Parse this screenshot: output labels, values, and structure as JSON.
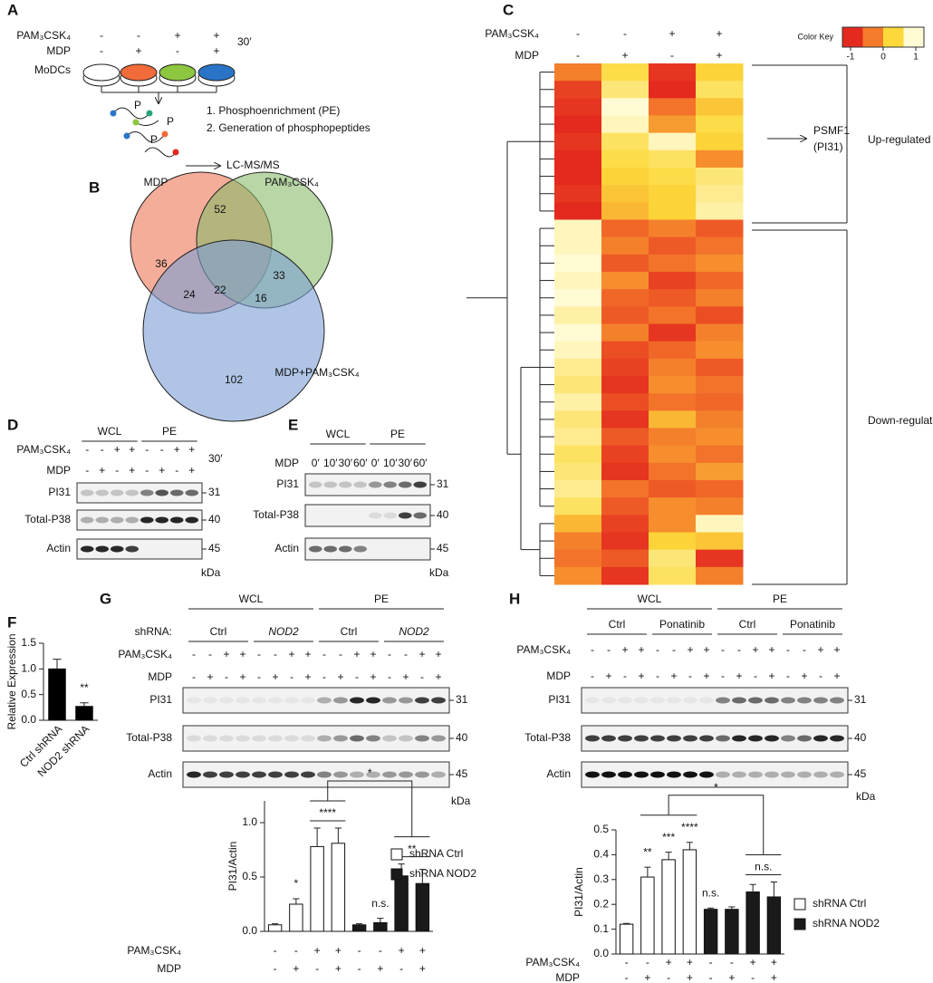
{
  "panel_labels": [
    "A",
    "B",
    "C",
    "D",
    "E",
    "F",
    "G",
    "H"
  ],
  "panel_a": {
    "rows": [
      "PAM₃CSK₄",
      "MDP",
      "MoDCs"
    ],
    "pam_signs": [
      "-",
      "-",
      "+",
      "+"
    ],
    "mdp_signs": [
      "-",
      "+",
      "-",
      "+"
    ],
    "time": "30′",
    "phospho": "P",
    "steps": [
      "1. Phosphoenrichment (PE)",
      "2. Generation of phosphopeptides"
    ],
    "readout": "LC-MS/MS"
  },
  "venn": {
    "sets": [
      "MDP",
      "PAM₃CSK₄",
      "MDP+PAM₃CSK₄"
    ],
    "counts": [
      36,
      52,
      33,
      24,
      22,
      16,
      102
    ]
  },
  "blot_d": {
    "groups": [
      "WCL",
      "PE"
    ],
    "treatments": [
      {
        "label": "PAM₃CSK₄",
        "signs": [
          "-",
          "-",
          "+",
          "+",
          "-",
          "-",
          "+",
          "+"
        ]
      },
      {
        "label": "MDP",
        "signs": [
          "-",
          "+",
          "-",
          "+",
          "-",
          "+",
          "-",
          "+"
        ]
      }
    ],
    "time": "30′",
    "bands": [
      "PI31",
      "Total-P38",
      "Actin"
    ],
    "kda": [
      31,
      40,
      45
    ],
    "kda_unit": "kDa",
    "intensity": [
      [
        0.2,
        0.2,
        0.2,
        0.2,
        0.5,
        0.7,
        0.6,
        0.6
      ],
      [
        0.3,
        0.3,
        0.3,
        0.3,
        0.9,
        0.9,
        0.9,
        0.9
      ],
      [
        0.9,
        0.9,
        0.9,
        0.8,
        0,
        0,
        0,
        0
      ]
    ]
  },
  "blot_e": {
    "groups": [
      "WCL",
      "PE"
    ],
    "treatments": [
      {
        "label": "MDP",
        "signs": [
          "0′",
          "10′",
          "30′",
          "60′",
          "0′",
          "10′",
          "30′",
          "60′"
        ]
      }
    ],
    "bands": [
      "PI31",
      "Total-P38",
      "Actin"
    ],
    "kda": [
      31,
      40,
      45
    ],
    "kda_unit": "kDa",
    "intensity": [
      [
        0.2,
        0.2,
        0.2,
        0.2,
        0.4,
        0.5,
        0.6,
        0.8
      ],
      [
        0,
        0,
        0,
        0,
        0.1,
        0.1,
        0.8,
        0.6
      ],
      [
        0.6,
        0.6,
        0.6,
        0.5,
        0,
        0,
        0,
        0
      ]
    ]
  },
  "blot_g": {
    "groups": [
      "WCL",
      "PE"
    ],
    "subgroup_label": "shRNA:",
    "subgroups": [
      "Ctrl",
      "NOD2",
      "Ctrl",
      "NOD2"
    ],
    "treatments": [
      {
        "label": "PAM₃CSK₄",
        "signs": [
          "-",
          "-",
          "+",
          "+",
          "-",
          "-",
          "+",
          "+",
          "-",
          "-",
          "+",
          "+",
          "-",
          "-",
          "+",
          "+"
        ]
      },
      {
        "label": "MDP",
        "signs": [
          "-",
          "+",
          "-",
          "+",
          "-",
          "+",
          "-",
          "+",
          "-",
          "+",
          "-",
          "+",
          "-",
          "+",
          "-",
          "+"
        ]
      }
    ],
    "bands": [
      "PI31",
      "Total-P38",
      "Actin"
    ],
    "kda": [
      31,
      40,
      45
    ],
    "kda_unit": "kDa",
    "intensity": [
      [
        0.05,
        0.05,
        0.05,
        0.05,
        0.05,
        0.05,
        0.05,
        0.05,
        0.3,
        0.4,
        0.9,
        0.9,
        0.4,
        0.4,
        0.8,
        0.8
      ],
      [
        0.1,
        0.1,
        0.1,
        0.1,
        0.1,
        0.1,
        0.1,
        0.1,
        0.3,
        0.4,
        0.6,
        0.5,
        0.2,
        0.2,
        0.5,
        0.4
      ],
      [
        0.9,
        0.8,
        0.8,
        0.8,
        0.8,
        0.8,
        0.8,
        0.8,
        0.5,
        0.4,
        0.3,
        0.3,
        0.4,
        0.4,
        0.4,
        0.3
      ]
    ]
  },
  "blot_h": {
    "groups": [
      "WCL",
      "PE"
    ],
    "subgroups": [
      "Ctrl",
      "Ponatinib",
      "Ctrl",
      "Ponatinib"
    ],
    "treatments": [
      {
        "label": "PAM₃CSK₄",
        "signs": [
          "-",
          "-",
          "+",
          "+",
          "-",
          "-",
          "+",
          "+",
          "-",
          "-",
          "+",
          "+",
          "-",
          "-",
          "+",
          "+"
        ]
      },
      {
        "label": "MDP",
        "signs": [
          "-",
          "+",
          "-",
          "+",
          "-",
          "+",
          "-",
          "+",
          "-",
          "+",
          "-",
          "+",
          "-",
          "+",
          "-",
          "+"
        ]
      }
    ],
    "bands": [
      "PI31",
      "Total-P38",
      "Actin"
    ],
    "kda": [
      31,
      40,
      45
    ],
    "kda_unit": "kDa",
    "intensity": [
      [
        0.05,
        0.05,
        0.05,
        0.05,
        0.05,
        0.05,
        0.05,
        0.05,
        0.5,
        0.6,
        0.6,
        0.6,
        0.5,
        0.5,
        0.5,
        0.5
      ],
      [
        0.8,
        0.8,
        0.8,
        0.8,
        0.8,
        0.8,
        0.8,
        0.8,
        0.6,
        0.9,
        0.9,
        0.9,
        0.5,
        0.6,
        0.9,
        0.9
      ],
      [
        1,
        1,
        1,
        1,
        1,
        1,
        1,
        1,
        0.3,
        0.3,
        0.3,
        0.3,
        0.3,
        0.3,
        0.3,
        0.3
      ]
    ]
  },
  "chart_data": [
    {
      "type": "heatmap",
      "treatments": [
        {
          "label": "PAM₃CSK₄",
          "signs": [
            "-",
            "-",
            "+",
            "+"
          ]
        },
        {
          "label": "MDP",
          "signs": [
            "-",
            "+",
            "-",
            "+"
          ]
        }
      ],
      "color_key": {
        "title": "Color Key",
        "lim": [
          -1,
          1
        ],
        "ticks": [
          -1,
          0,
          1
        ],
        "colors": [
          "#e4291e",
          "#f47b2a",
          "#fcd83a",
          "#fffbd4"
        ]
      },
      "highlight": [
        "PSMF1",
        "(PI31)"
      ],
      "groups": [
        "Up-regulated",
        "Down-regulated"
      ],
      "values": [
        [
          -0.3,
          0.4,
          -0.9,
          0.3
        ],
        [
          -0.8,
          0.6,
          -1,
          0.5
        ],
        [
          -0.9,
          1,
          -0.4,
          0.2
        ],
        [
          -1,
          0.9,
          -0.1,
          0.4
        ],
        [
          -0.9,
          0.5,
          0.9,
          0.3
        ],
        [
          -1,
          0.4,
          0.5,
          -0.2
        ],
        [
          -1,
          0.3,
          0.4,
          0.6
        ],
        [
          -0.9,
          0.2,
          0.3,
          0.7
        ],
        [
          -1,
          0.1,
          0.3,
          0.8
        ],
        [
          0.9,
          -0.5,
          -0.3,
          -0.6
        ],
        [
          0.9,
          -0.3,
          -0.6,
          -0.4
        ],
        [
          1,
          -0.6,
          -0.4,
          -0.2
        ],
        [
          0.9,
          -0.2,
          -0.8,
          -0.5
        ],
        [
          1,
          -0.5,
          -0.6,
          -0.3
        ],
        [
          0.8,
          -0.6,
          -0.4,
          -0.7
        ],
        [
          1,
          -0.3,
          -0.9,
          -0.3
        ],
        [
          0.9,
          -0.7,
          -0.5,
          -0.2
        ],
        [
          0.7,
          -0.8,
          -0.3,
          -0.6
        ],
        [
          0.6,
          -0.9,
          -0.2,
          -0.4
        ],
        [
          0.8,
          -0.7,
          -0.4,
          -0.5
        ],
        [
          0.6,
          -0.9,
          0.1,
          -0.3
        ],
        [
          0.7,
          -0.6,
          -0.3,
          -0.2
        ],
        [
          0.5,
          -0.8,
          -0.2,
          -0.4
        ],
        [
          0.6,
          -0.9,
          -0.4,
          -0.1
        ],
        [
          0.7,
          -0.4,
          -0.6,
          -0.5
        ],
        [
          0.5,
          -0.6,
          -0.2,
          -0.3
        ],
        [
          0.1,
          -0.8,
          -0.2,
          0.9
        ],
        [
          -0.3,
          -0.9,
          0.3,
          0.2
        ],
        [
          -0.4,
          -0.6,
          0.6,
          -0.9
        ],
        [
          -0.2,
          -0.9,
          0.5,
          -0.3
        ]
      ]
    },
    {
      "type": "bar",
      "ylabel": "Relative Expression",
      "categories": [
        "Ctrl shRNA",
        "NOD2 shRNA"
      ],
      "ylim": [
        0,
        1.5
      ],
      "yticks": [
        {
          "value": 0,
          "label": "0.0"
        },
        {
          "value": 0.5,
          "label": "0.5"
        },
        {
          "value": 1,
          "label": "1.0"
        },
        {
          "value": 1.5,
          "label": "1.5"
        }
      ],
      "series": [
        {
          "color": "#000000",
          "values": [
            1.0,
            0.27
          ],
          "errors": [
            0.19,
            0.07
          ]
        }
      ],
      "annotations": [
        "**"
      ]
    },
    {
      "type": "bar",
      "ylabel": "PI31/Actin",
      "ylim": [
        0,
        1.2
      ],
      "yticks": [
        {
          "value": 0,
          "label": "0.0"
        },
        {
          "value": 0.5,
          "label": "0.5"
        },
        {
          "value": 1,
          "label": "1.0"
        }
      ],
      "series": [
        {
          "name": "shRNA Ctrl",
          "color": "#ffffff",
          "values": [
            0.06,
            0.25,
            0.78,
            0.81,
            null,
            null,
            null,
            null
          ],
          "errors": [
            0.01,
            0.05,
            0.17,
            0.14,
            null,
            null,
            null,
            null
          ]
        },
        {
          "name": "shRNA NOD2",
          "color": "#1a1a1a",
          "values": [
            null,
            null,
            null,
            null,
            0.06,
            0.08,
            0.51,
            0.44
          ],
          "errors": [
            null,
            null,
            null,
            null,
            0.01,
            0.04,
            0.11,
            0.13
          ]
        }
      ],
      "treatments": [
        {
          "label": "PAM₃CSK₄",
          "signs": [
            "-",
            "-",
            "+",
            "+",
            "-",
            "-",
            "+",
            "+"
          ]
        },
        {
          "label": "MDP",
          "signs": [
            "-",
            "+",
            "-",
            "+",
            "-",
            "+",
            "-",
            "+"
          ]
        }
      ],
      "annotations": [
        "*",
        "****",
        "n.s.",
        "**",
        "*"
      ]
    },
    {
      "type": "bar",
      "ylabel": "PI31/Actin",
      "ylim": [
        0,
        0.5
      ],
      "yticks": [
        {
          "value": 0,
          "label": "0.0"
        },
        0.1,
        0.2,
        0.3,
        0.4,
        0.5
      ],
      "series": [
        {
          "name": "shRNA Ctrl",
          "color": "#ffffff",
          "values": [
            0.12,
            0.31,
            0.38,
            0.42,
            null,
            null,
            null,
            null
          ],
          "errors": [
            0.003,
            0.04,
            0.03,
            0.03,
            null,
            null,
            null,
            null
          ]
        },
        {
          "name": "shRNA NOD2",
          "color": "#1a1a1a",
          "values": [
            null,
            null,
            null,
            null,
            0.18,
            0.18,
            0.25,
            0.23
          ],
          "errors": [
            null,
            null,
            null,
            null,
            0.005,
            0.01,
            0.03,
            0.06
          ]
        }
      ],
      "treatments": [
        {
          "label": "PAM₃CSK₄",
          "signs": [
            "-",
            "-",
            "+",
            "+",
            "-",
            "-",
            "+",
            "+"
          ]
        },
        {
          "label": "MDP",
          "signs": [
            "-",
            "+",
            "-",
            "+",
            "-",
            "+",
            "-",
            "+"
          ]
        }
      ],
      "annotations": [
        "**",
        "***",
        "****",
        "n.s.",
        "n.s.",
        "*"
      ]
    }
  ]
}
